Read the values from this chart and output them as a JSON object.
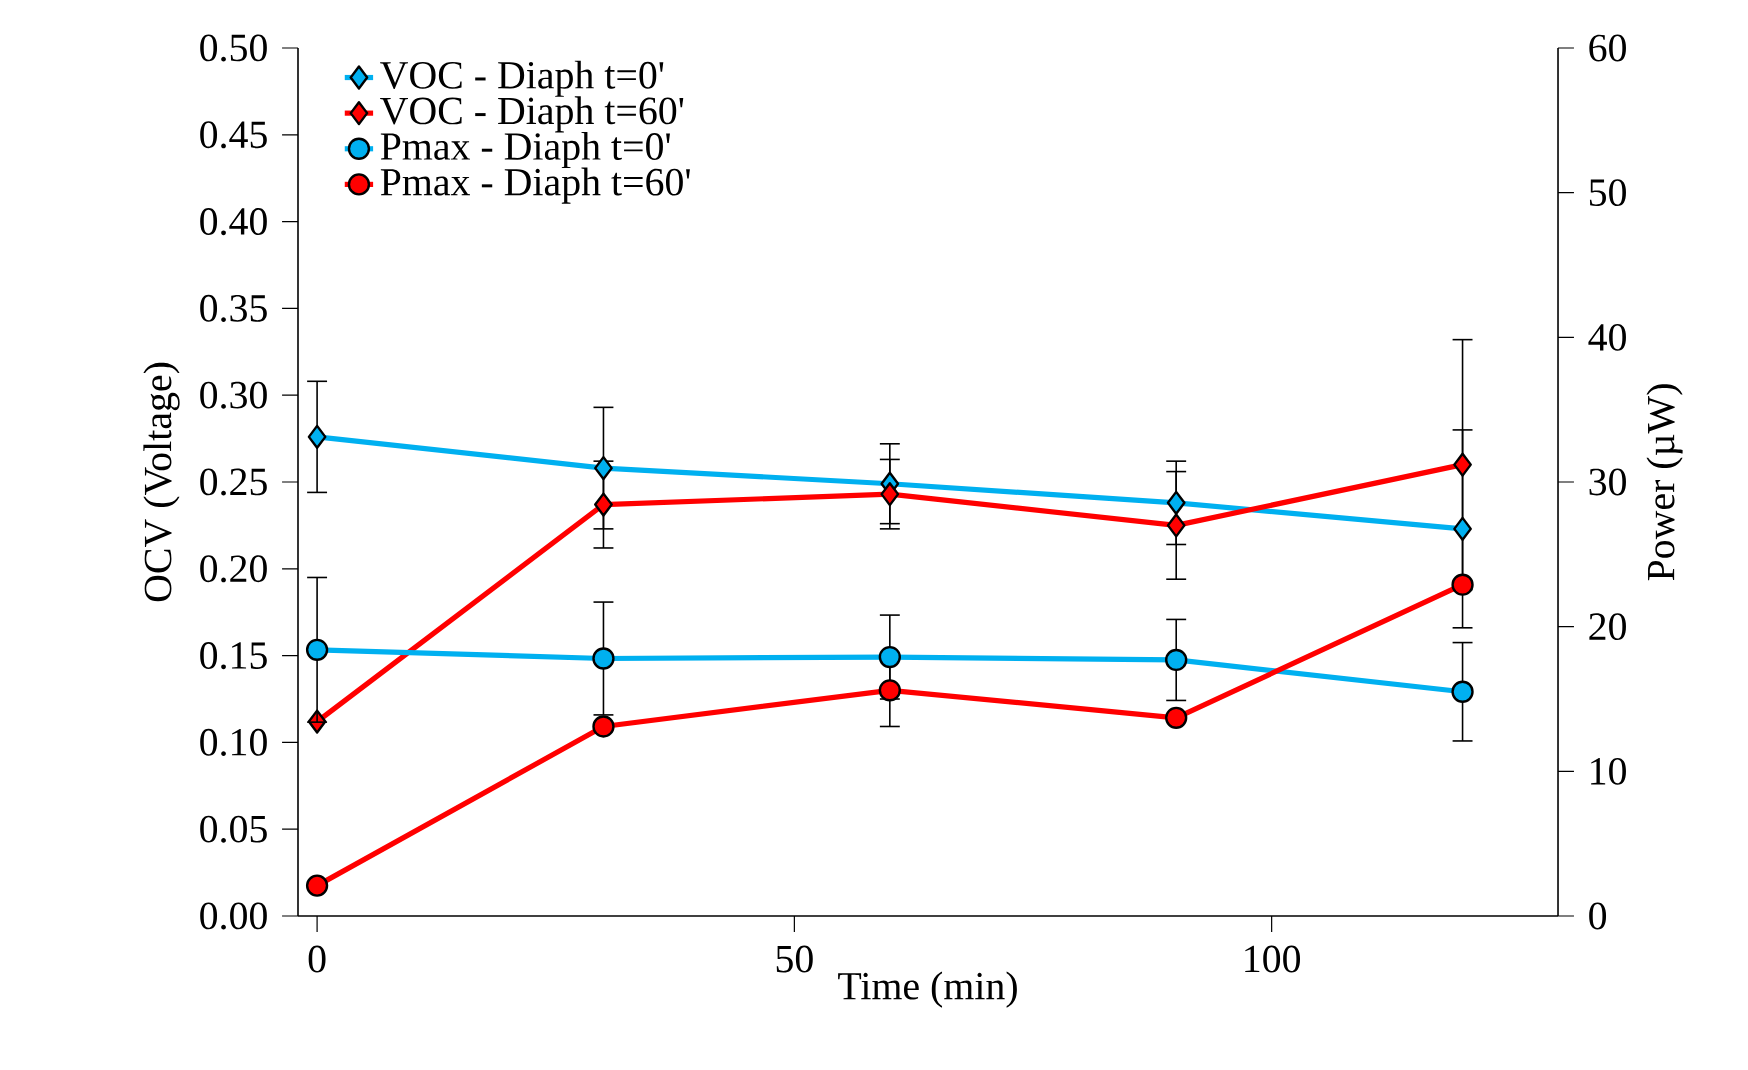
{
  "chart_data": {
    "type": "line",
    "xlabel": "Time (min)",
    "ylabel": "OCV (Voltage)",
    "y2label": "Power (µW)",
    "x": [
      0,
      30,
      60,
      90,
      120
    ],
    "series": [
      {
        "name": "VOC - Diaph t=0'",
        "color": "#00b0f0",
        "marker": "diamond",
        "values": [
          0.276,
          0.258,
          0.249,
          0.238,
          0.223
        ],
        "errors": [
          0.032,
          0.035,
          0.023,
          0.024,
          0.057
        ]
      },
      {
        "name": "VOC - Diaph t=60'",
        "color": "#ff0000",
        "marker": "diamond",
        "values": [
          0.112,
          0.237,
          0.243,
          0.225,
          0.26
        ],
        "errors": [
          null,
          0.025,
          0.02,
          0.031,
          0.072
        ]
      },
      {
        "name": "Pmax - Diaph t=0'",
        "color": "#00b0f0",
        "marker": "circle",
        "axis": "y2",
        "values": [
          18.4,
          17.8,
          17.9,
          17.7,
          15.5
        ],
        "errors": [
          5,
          3.9,
          2.9,
          2.8,
          3.4
        ]
      },
      {
        "name": "Pmax - Diaph t=60'",
        "color": "#ff0000",
        "marker": "circle",
        "axis": "y2",
        "values": [
          2.1,
          13.1,
          15.6,
          13.7,
          22.9
        ],
        "errors": [
          null,
          null,
          2.5,
          null,
          null
        ]
      }
    ],
    "xlim": [
      -2,
      130
    ],
    "xticks": [
      0,
      50,
      100
    ],
    "ylim": [
      0,
      0.5
    ],
    "yticks": [
      {
        "value": 0,
        "label": "0.00"
      },
      {
        "value": 0.05,
        "label": "0.05"
      },
      {
        "value": 0.1,
        "label": "0.10"
      },
      {
        "value": 0.15,
        "label": "0.15"
      },
      {
        "value": 0.2,
        "label": "0.20"
      },
      {
        "value": 0.25,
        "label": "0.25"
      },
      {
        "value": 0.3,
        "label": "0.30"
      },
      {
        "value": 0.35,
        "label": "0.35"
      },
      {
        "value": 0.4,
        "label": "0.40"
      },
      {
        "value": 0.45,
        "label": "0.45"
      },
      {
        "value": 0.5,
        "label": "0.50"
      }
    ],
    "y2lim": [
      0,
      60
    ],
    "y2ticks": [
      0,
      10,
      20,
      30,
      40,
      50,
      60
    ],
    "grid": false,
    "legend": "top left"
  }
}
